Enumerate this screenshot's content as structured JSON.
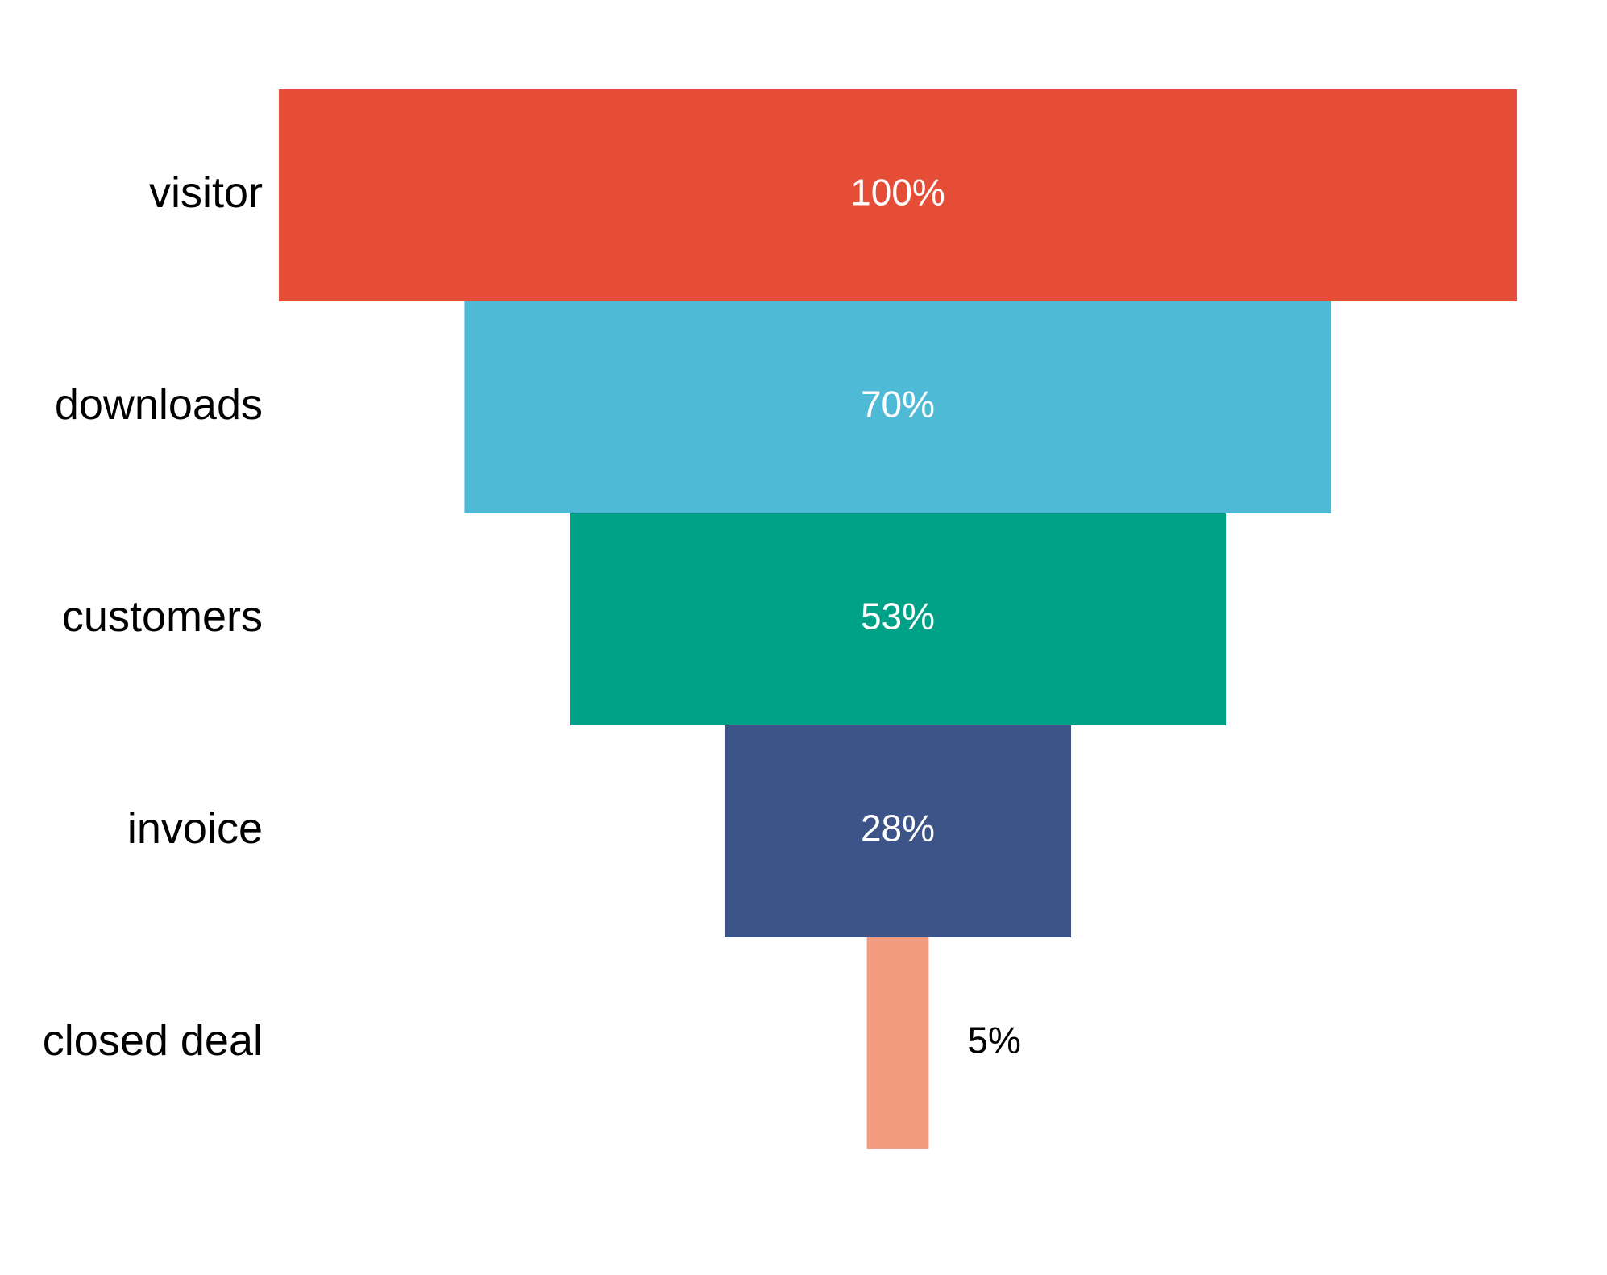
{
  "chart_data": {
    "type": "funnel",
    "categories": [
      "visitor",
      "downloads",
      "customers",
      "invoice",
      "closed deal"
    ],
    "values": [
      100,
      70,
      53,
      28,
      5
    ],
    "value_labels": [
      "100%",
      "70%",
      "53%",
      "28%",
      "5%"
    ],
    "colors": [
      "#e64d37",
      "#4fbad6",
      "#00a287",
      "#3c5488",
      "#f39b7f"
    ]
  }
}
